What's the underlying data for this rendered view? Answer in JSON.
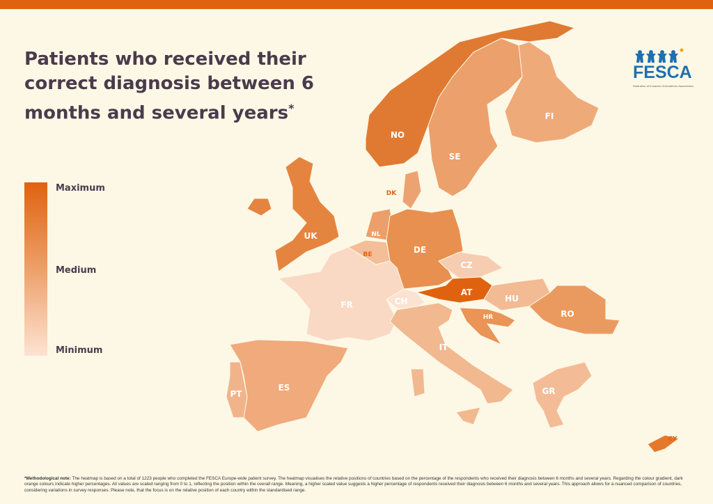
{
  "title": {
    "text": "Patients who received their correct diagnosis between 6 months and several years",
    "asterisk": "*"
  },
  "logo": {
    "name": "FESCA",
    "subtitle": "Federation of European Scleroderma Associations"
  },
  "legend": {
    "maximum": "Maximum",
    "medium": "Medium",
    "minimum": "Minimum",
    "colors": {
      "max": "#e0620f",
      "min": "#fde3d2"
    }
  },
  "countries": [
    {
      "code": "NO",
      "color": "#e07a32"
    },
    {
      "code": "SE",
      "color": "#eca06b"
    },
    {
      "code": "FI",
      "color": "#efaa7a"
    },
    {
      "code": "DK",
      "color": "#eda371"
    },
    {
      "code": "UK",
      "color": "#e5843f"
    },
    {
      "code": "NL",
      "color": "#ec9f68"
    },
    {
      "code": "BE",
      "color": "#f3be98"
    },
    {
      "code": "DE",
      "color": "#e8904f"
    },
    {
      "code": "CZ",
      "color": "#f6cdb0"
    },
    {
      "code": "AT",
      "color": "#e0620f"
    },
    {
      "code": "CH",
      "color": "#fbe3d2"
    },
    {
      "code": "FR",
      "color": "#fad9c4"
    },
    {
      "code": "ES",
      "color": "#f0aa7c"
    },
    {
      "code": "PT",
      "color": "#f1b48a"
    },
    {
      "code": "IT",
      "color": "#f2b88f"
    },
    {
      "code": "HU",
      "color": "#f2bb94"
    },
    {
      "code": "HR",
      "color": "#ea9456"
    },
    {
      "code": "RO",
      "color": "#eb9a5f"
    },
    {
      "code": "GR",
      "color": "#f3bc96"
    },
    {
      "code": "CY",
      "color": "#e5782a"
    }
  ],
  "note": {
    "label": "*Methodological note:",
    "text": " The heatmap is based on a total of 1223 people who completed the FESCA Europe-wide patient survey. The heatmap visualises the relative positions of countries based on the percentage of the respondents who received their diagnosis between 6 months and several years. Regarding the colour gradient, dark orange colours indicate higher percentages. All values are scaled ranging from 0 to 1, reflecting the position within the overall range. Meaning, a higher scaled value suggests a higher percentage of respondents received their diagnosis between 6 months and several years. This approach allows for a nuanced comparison of countries, considering variations in survey responses. Please note, that the focus is on the relative position of each country within the standardised range."
  }
}
